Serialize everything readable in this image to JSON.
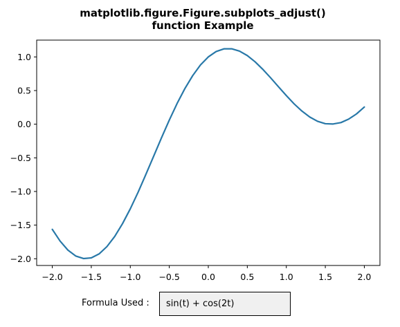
{
  "chart_data": {
    "type": "line",
    "title_lines": [
      "matplotlib.figure.Figure.subplots_adjust()",
      "function Example"
    ],
    "xlabel": "",
    "ylabel": "",
    "xlim": [
      -2.2,
      2.2
    ],
    "ylim": [
      -2.1,
      1.25
    ],
    "xticks": [
      -2.0,
      -1.5,
      -1.0,
      -0.5,
      0.0,
      0.5,
      1.0,
      1.5,
      2.0
    ],
    "xtick_labels": [
      "−2.0",
      "−1.5",
      "−1.0",
      "−0.5",
      "0.0",
      "0.5",
      "1.0",
      "1.5",
      "2.0"
    ],
    "yticks": [
      1.0,
      0.5,
      0.0,
      -0.5,
      -1.0,
      -1.5,
      -2.0
    ],
    "ytick_labels": [
      "1.0",
      "0.5",
      "0.0",
      "−0.5",
      "−1.0",
      "−1.5",
      "−2.0"
    ],
    "grid": false,
    "legend": "none",
    "series": [
      {
        "color": "#2878a8",
        "x": [
          -2.0,
          -1.9,
          -1.8,
          -1.7,
          -1.6,
          -1.5,
          -1.4,
          -1.3,
          -1.2,
          -1.1,
          -1.0,
          -0.9,
          -0.8,
          -0.7,
          -0.6,
          -0.5,
          -0.4,
          -0.3,
          -0.2,
          -0.1,
          0.0,
          0.1,
          0.2,
          0.3,
          0.4,
          0.5,
          0.6,
          0.7,
          0.8,
          0.9,
          1.0,
          1.1,
          1.2,
          1.3,
          1.4,
          1.5,
          1.6,
          1.7,
          1.8,
          1.9,
          2.0
        ],
        "y": [
          -1.563,
          -1.737,
          -1.871,
          -1.959,
          -1.997,
          -1.987,
          -1.928,
          -1.82,
          -1.669,
          -1.479,
          -1.258,
          -1.011,
          -0.746,
          -0.474,
          -0.202,
          0.061,
          0.308,
          0.53,
          0.722,
          0.881,
          1.0,
          1.08,
          1.12,
          1.121,
          1.086,
          1.02,
          0.927,
          0.814,
          0.688,
          0.556,
          0.425,
          0.302,
          0.195,
          0.107,
          0.043,
          0.007,
          0.003,
          0.024,
          0.076,
          0.153,
          0.255
        ]
      }
    ]
  },
  "formula": {
    "label": "Formula Used :",
    "value": "sin(t) + cos(2t)"
  }
}
